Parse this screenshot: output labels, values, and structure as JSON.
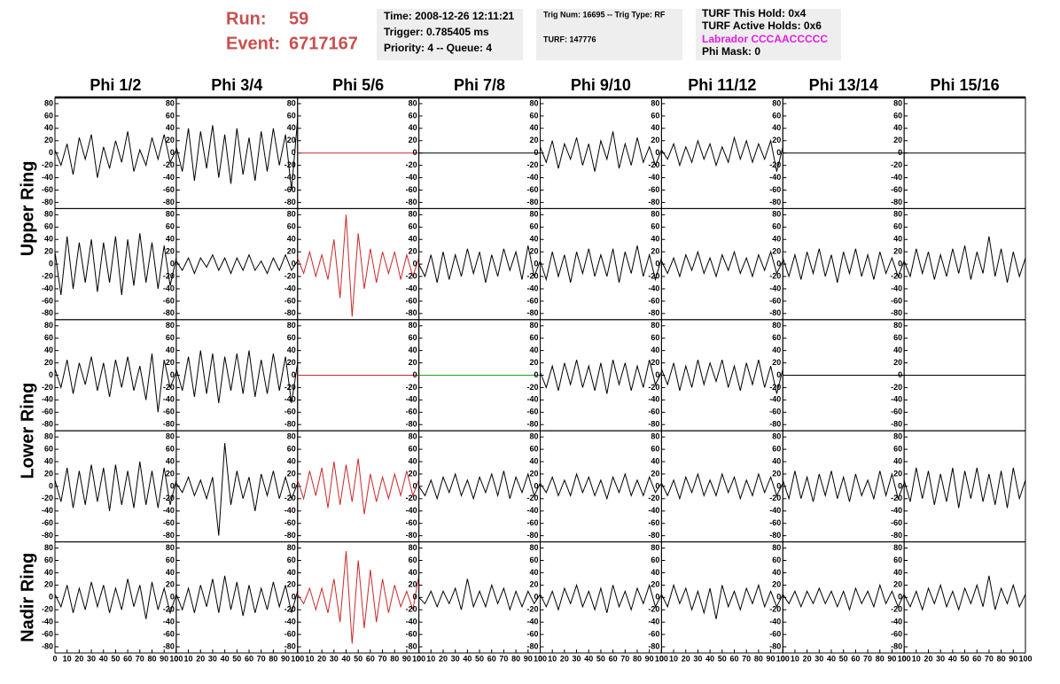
{
  "header": {
    "run_label": "Run:",
    "run": "59",
    "event_label": "Event:",
    "event": "6717167",
    "time": "Time: 2008-12-26 12:11:21",
    "trigger": "Trigger: 0.785405 ms",
    "priority": "Priority: 4 -- Queue: 4",
    "trig_num": "Trig Num: 16695 -- Trig Type: RF",
    "turf": "TURF: 147776",
    "turf_hold": "TURF This Hold: 0x4",
    "turf_active": "TURF Active Holds: 0x6",
    "labrador": "Labrador CCCAACCCCC",
    "phi_mask": "Phi Mask: 0"
  },
  "chart_data": {
    "type": "line",
    "columns": [
      "Phi 1/2",
      "Phi 3/4",
      "Phi 5/6",
      "Phi 7/8",
      "Phi 9/10",
      "Phi 11/12",
      "Phi 13/14",
      "Phi 15/16"
    ],
    "rows": [
      "Upper Ring",
      "Lower Ring",
      "Nadir Ring"
    ],
    "xlim": [
      0,
      100
    ],
    "xticks": [
      0,
      10,
      20,
      30,
      40,
      50,
      60,
      70,
      80,
      90,
      100
    ],
    "ylim": [
      -90,
      90
    ],
    "yticks": [
      80,
      60,
      40,
      20,
      0,
      -20,
      -40,
      -60,
      -80
    ],
    "x": [
      0,
      5,
      10,
      15,
      20,
      25,
      30,
      35,
      40,
      45,
      50,
      55,
      60,
      65,
      70,
      75,
      80,
      85,
      90,
      95,
      100
    ],
    "panels": [
      [
        {
          "color": "#000000",
          "values": [
            5,
            -20,
            15,
            -35,
            25,
            -10,
            30,
            -40,
            10,
            -25,
            20,
            -15,
            35,
            -30,
            5,
            -20,
            25,
            -10,
            30,
            -15,
            5
          ]
        },
        {
          "color": "#000000",
          "values": [
            10,
            -30,
            40,
            -45,
            35,
            -25,
            45,
            -40,
            30,
            -50,
            40,
            -35,
            25,
            -45,
            35,
            -30,
            40,
            -20,
            30,
            -60,
            55
          ]
        },
        {
          "color": "#c8282a",
          "values": [
            0,
            0,
            0,
            0,
            0,
            0,
            0,
            0,
            0,
            0,
            0,
            0,
            0,
            0,
            0,
            0,
            0,
            0,
            0,
            0,
            0
          ]
        },
        {
          "color": "#000000",
          "values": [
            0,
            0,
            0,
            0,
            0,
            0,
            0,
            0,
            0,
            0,
            0,
            0,
            0,
            0,
            0,
            0,
            0,
            0,
            0,
            0,
            0
          ]
        },
        {
          "color": "#000000",
          "values": [
            10,
            -15,
            20,
            -25,
            15,
            -10,
            25,
            -20,
            15,
            -30,
            20,
            -10,
            35,
            -25,
            15,
            -20,
            25,
            -15,
            10,
            -20,
            5
          ]
        },
        {
          "color": "#000000",
          "values": [
            5,
            -10,
            15,
            -20,
            10,
            -15,
            20,
            -10,
            15,
            -20,
            10,
            -15,
            25,
            -10,
            20,
            -15,
            15,
            -10,
            20,
            -30,
            10
          ]
        },
        {
          "color": "#000000",
          "values": [
            0,
            0,
            0,
            0,
            0,
            0,
            0,
            0,
            0,
            0,
            0,
            0,
            0,
            0,
            0,
            0,
            0,
            0,
            0,
            0,
            0
          ]
        },
        {
          "color": "#000000",
          "values": [
            0,
            0,
            0,
            0,
            0,
            0,
            0,
            0,
            0,
            0,
            0,
            0,
            0,
            0,
            0,
            0,
            0,
            0,
            0,
            0,
            0
          ]
        }
      ],
      [
        {
          "color": "#000000",
          "values": [
            20,
            -50,
            45,
            -40,
            35,
            -30,
            40,
            -45,
            35,
            -30,
            45,
            -50,
            40,
            -35,
            50,
            -30,
            35,
            -40,
            30,
            -35,
            10
          ]
        },
        {
          "color": "#000000",
          "values": [
            5,
            -10,
            10,
            -15,
            10,
            -5,
            15,
            -10,
            10,
            -15,
            10,
            -10,
            15,
            -10,
            5,
            -15,
            10,
            -10,
            15,
            -10,
            5
          ]
        },
        {
          "color": "#c8282a",
          "values": [
            10,
            -15,
            20,
            -20,
            15,
            -25,
            40,
            -55,
            80,
            -85,
            50,
            -40,
            25,
            -30,
            20,
            -15,
            20,
            -25,
            15,
            -20,
            10
          ]
        },
        {
          "color": "#000000",
          "values": [
            0,
            -20,
            15,
            -30,
            20,
            -25,
            15,
            -20,
            25,
            -15,
            20,
            -30,
            15,
            -20,
            25,
            -10,
            20,
            -25,
            30,
            -20,
            5
          ]
        },
        {
          "color": "#000000",
          "values": [
            5,
            -25,
            20,
            -20,
            15,
            -30,
            20,
            -15,
            25,
            -20,
            15,
            -20,
            25,
            -30,
            20,
            -15,
            30,
            -20,
            15,
            -25,
            10
          ]
        },
        {
          "color": "#000000",
          "values": [
            5,
            -15,
            10,
            -20,
            15,
            -10,
            20,
            -15,
            10,
            -20,
            15,
            -10,
            20,
            -15,
            10,
            -20,
            15,
            -10,
            20,
            -15,
            5
          ]
        },
        {
          "color": "#000000",
          "values": [
            10,
            -20,
            15,
            -25,
            20,
            -15,
            25,
            -20,
            15,
            -30,
            20,
            -15,
            25,
            -20,
            15,
            -25,
            20,
            -15,
            10,
            -20,
            5
          ]
        },
        {
          "color": "#000000",
          "values": [
            5,
            -20,
            25,
            -15,
            20,
            -25,
            15,
            -20,
            25,
            -15,
            30,
            -25,
            20,
            -15,
            45,
            -20,
            25,
            -30,
            20,
            -20,
            10
          ]
        }
      ],
      [
        {
          "color": "#000000",
          "values": [
            10,
            -20,
            25,
            -30,
            20,
            -15,
            30,
            -25,
            20,
            -35,
            25,
            -20,
            30,
            -25,
            15,
            -40,
            35,
            -60,
            25,
            -20,
            5
          ]
        },
        {
          "color": "#000000",
          "values": [
            10,
            -25,
            30,
            -35,
            40,
            -30,
            35,
            -45,
            30,
            -25,
            35,
            -30,
            40,
            -35,
            25,
            -30,
            35,
            -25,
            30,
            -45,
            20
          ]
        },
        {
          "color": "#c8282a",
          "values": [
            0,
            0,
            0,
            0,
            0,
            0,
            0,
            0,
            0,
            0,
            0,
            0,
            0,
            0,
            0,
            0,
            0,
            0,
            0,
            0,
            0
          ]
        },
        {
          "color": "#20a020",
          "values": [
            0,
            0,
            0,
            0,
            0,
            0,
            0,
            0,
            0,
            0,
            0,
            0,
            0,
            0,
            0,
            0,
            0,
            0,
            0,
            0,
            0
          ]
        },
        {
          "color": "#000000",
          "values": [
            5,
            -20,
            15,
            -25,
            20,
            -15,
            25,
            -20,
            15,
            -25,
            20,
            -30,
            25,
            -15,
            20,
            -25,
            15,
            -20,
            25,
            -15,
            5
          ]
        },
        {
          "color": "#000000",
          "values": [
            10,
            -15,
            20,
            -25,
            15,
            -20,
            25,
            -15,
            20,
            -10,
            25,
            -20,
            15,
            -25,
            20,
            -15,
            25,
            -20,
            15,
            -30,
            10
          ]
        },
        {
          "color": "#000000",
          "values": [
            0,
            0,
            0,
            0,
            0,
            0,
            0,
            0,
            0,
            0,
            0,
            0,
            0,
            0,
            0,
            0,
            0,
            0,
            0,
            0,
            0
          ]
        },
        {
          "color": "#000000",
          "values": [
            0,
            0,
            0,
            0,
            0,
            0,
            0,
            0,
            0,
            0,
            0,
            0,
            0,
            0,
            0,
            0,
            0,
            0,
            0,
            0,
            0
          ]
        }
      ],
      [
        {
          "color": "#000000",
          "values": [
            10,
            -25,
            30,
            -35,
            25,
            -30,
            35,
            -25,
            30,
            -40,
            35,
            -30,
            25,
            -35,
            40,
            -30,
            25,
            -35,
            30,
            -30,
            10
          ]
        },
        {
          "color": "#000000",
          "values": [
            5,
            -10,
            15,
            -15,
            10,
            -20,
            15,
            -80,
            70,
            -30,
            25,
            -20,
            15,
            -40,
            20,
            -15,
            25,
            -20,
            15,
            -20,
            5
          ]
        },
        {
          "color": "#c8282a",
          "values": [
            10,
            -20,
            25,
            -15,
            30,
            -35,
            40,
            -30,
            35,
            -25,
            45,
            -45,
            20,
            -25,
            15,
            -20,
            20,
            -15,
            25,
            -15,
            10
          ]
        },
        {
          "color": "#000000",
          "values": [
            0,
            -15,
            10,
            -20,
            15,
            -10,
            20,
            -15,
            10,
            -20,
            15,
            -10,
            20,
            -15,
            25,
            -20,
            15,
            -10,
            20,
            -15,
            5
          ]
        },
        {
          "color": "#000000",
          "values": [
            5,
            -10,
            15,
            -15,
            10,
            -15,
            20,
            -10,
            15,
            -15,
            10,
            -20,
            15,
            -10,
            20,
            -15,
            10,
            -15,
            15,
            -10,
            5
          ]
        },
        {
          "color": "#000000",
          "values": [
            5,
            -15,
            10,
            -20,
            15,
            -10,
            20,
            -15,
            10,
            -15,
            20,
            -10,
            15,
            -20,
            10,
            -15,
            20,
            -10,
            15,
            -15,
            5
          ]
        },
        {
          "color": "#000000",
          "values": [
            10,
            -20,
            25,
            -20,
            15,
            -25,
            20,
            -15,
            25,
            -20,
            15,
            -25,
            20,
            -15,
            10,
            -20,
            25,
            -15,
            20,
            -20,
            5
          ]
        },
        {
          "color": "#000000",
          "values": [
            10,
            -25,
            30,
            -20,
            25,
            -30,
            20,
            -25,
            30,
            -35,
            25,
            -20,
            30,
            -25,
            20,
            -30,
            25,
            -35,
            30,
            -20,
            10
          ]
        }
      ],
      [
        {
          "color": "#000000",
          "values": [
            5,
            -15,
            20,
            -25,
            15,
            -20,
            25,
            -15,
            20,
            -25,
            15,
            -20,
            30,
            -15,
            20,
            -35,
            25,
            -20,
            15,
            -25,
            5
          ]
        },
        {
          "color": "#000000",
          "values": [
            5,
            -20,
            15,
            -25,
            20,
            -15,
            30,
            -25,
            35,
            -20,
            25,
            -30,
            20,
            -25,
            15,
            -20,
            25,
            -15,
            20,
            -25,
            10
          ]
        },
        {
          "color": "#c8282a",
          "values": [
            5,
            -10,
            15,
            -20,
            15,
            -25,
            30,
            -40,
            75,
            -75,
            60,
            -50,
            45,
            -40,
            30,
            -25,
            20,
            -15,
            10,
            -20,
            35
          ]
        },
        {
          "color": "#000000",
          "values": [
            0,
            -10,
            10,
            -15,
            10,
            -10,
            15,
            -20,
            30,
            -15,
            10,
            -15,
            20,
            -10,
            15,
            -20,
            10,
            -15,
            10,
            -10,
            5
          ]
        },
        {
          "color": "#000000",
          "values": [
            5,
            -15,
            10,
            -20,
            15,
            -10,
            20,
            -15,
            10,
            -20,
            15,
            -25,
            20,
            -15,
            10,
            -20,
            15,
            -10,
            20,
            -15,
            5
          ]
        },
        {
          "color": "#000000",
          "values": [
            5,
            -15,
            20,
            -10,
            15,
            -20,
            10,
            -25,
            15,
            -35,
            20,
            -15,
            10,
            -20,
            15,
            -10,
            20,
            -15,
            10,
            -15,
            5
          ]
        },
        {
          "color": "#000000",
          "values": [
            5,
            -10,
            10,
            -15,
            10,
            -10,
            15,
            -10,
            10,
            -15,
            10,
            -20,
            15,
            -10,
            10,
            -15,
            20,
            -10,
            10,
            -15,
            5
          ]
        },
        {
          "color": "#000000",
          "values": [
            5,
            -15,
            10,
            -20,
            15,
            -10,
            20,
            -15,
            10,
            -20,
            15,
            -10,
            20,
            -15,
            35,
            -20,
            15,
            -10,
            20,
            -15,
            5
          ]
        }
      ]
    ]
  }
}
